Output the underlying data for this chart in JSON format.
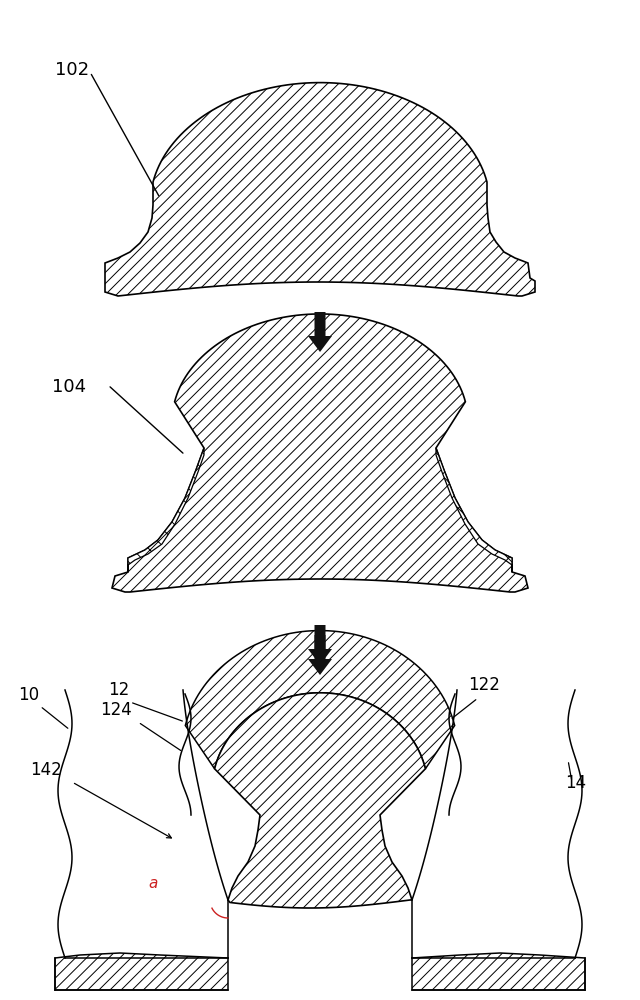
{
  "bg_color": "#ffffff",
  "line_color": "#000000",
  "label_102": "102",
  "label_104": "104",
  "label_10": "10",
  "label_12": "12",
  "label_14": "14",
  "label_122": "122",
  "label_124": "124",
  "label_142": "142",
  "label_a": "a",
  "hatch_lw": 0.7
}
